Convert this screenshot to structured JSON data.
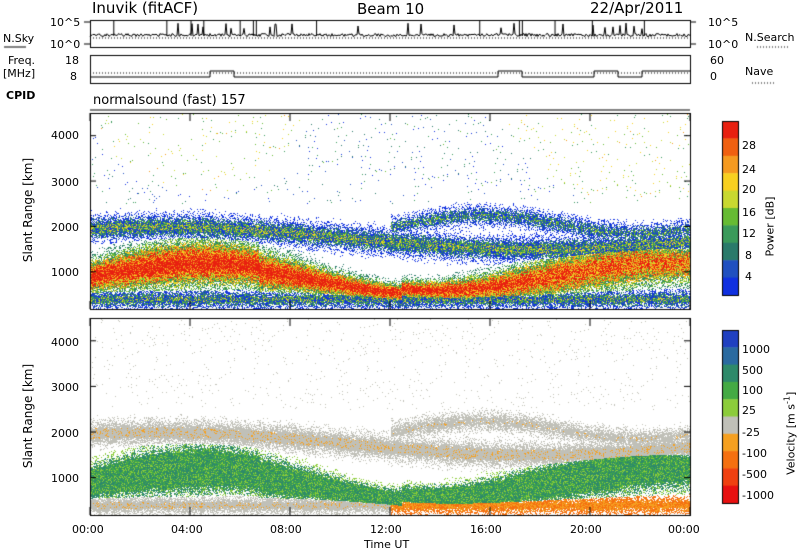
{
  "header": {
    "station": "Inuvik (fitACF)",
    "beam": "Beam 10",
    "date": "22/Apr/2011"
  },
  "left_labels": {
    "nsky": "N.Sky",
    "freq_line1": "Freq.",
    "freq_line2": "[MHz]",
    "cpid": "CPID"
  },
  "right_labels": {
    "nsearch": "N.Search",
    "nave": "Nave"
  },
  "cpid_text": "normalsound (fast) 157",
  "chart_data": [
    {
      "type": "line",
      "panel": "noise",
      "series": [
        {
          "name": "N.Sky",
          "values_description": "",
          "typical": 200
        },
        {
          "name": "N.Search",
          "typical": 150
        }
      ],
      "ylim": [
        1,
        100000
      ],
      "left_ticks": [
        "10^5",
        "10^0"
      ],
      "right_ticks": [
        "10^5",
        "10^0"
      ],
      "scale": "log"
    },
    {
      "type": "line",
      "panel": "frequency",
      "series": [
        {
          "name": "Freq.",
          "values": [
            11.4,
            11.4,
            11.4,
            11.4,
            11.4,
            12.0,
            11.4,
            11.4,
            11.4,
            11.4,
            11.4,
            11.4,
            11.4,
            11.4,
            11.4,
            11.4,
            11.4,
            12.0,
            11.4,
            11.4,
            11.4,
            12.0,
            11.4,
            12.0,
            12.0
          ]
        },
        {
          "name": "Nave",
          "values": [
            20,
            20,
            20,
            20,
            20,
            20,
            20,
            20,
            20,
            20,
            20,
            20,
            20,
            20,
            20,
            20,
            20,
            20,
            20,
            20,
            20,
            20,
            20,
            20,
            20
          ]
        }
      ],
      "left_ticks": [
        "18",
        "8"
      ],
      "right_ticks": [
        "60",
        "0"
      ]
    },
    {
      "type": "heatmap",
      "panel": "power",
      "ylabel": "Slant Range [km]",
      "y_ticks": [
        "4000",
        "3000",
        "2000",
        "1000"
      ],
      "ylim": [
        180,
        4500
      ],
      "colorbar_label": "Power [dB]",
      "colorbar_ticks": [
        "28",
        "24",
        "20",
        "16",
        "12",
        "8",
        "4"
      ],
      "colors": [
        "#1030e0",
        "#2050c0",
        "#2a7a6a",
        "#3a9a5a",
        "#66bb33",
        "#c8d830",
        "#f8d020",
        "#f59a20",
        "#f06010",
        "#e82010"
      ]
    },
    {
      "type": "heatmap",
      "panel": "velocity",
      "ylabel": "Slant Range [km]",
      "y_ticks": [
        "4000",
        "3000",
        "2000",
        "1000"
      ],
      "ylim": [
        180,
        4500
      ],
      "colorbar_label": "Velocity [m s^-1]",
      "colorbar_ticks": [
        "1000",
        "500",
        "100",
        "25",
        "-25",
        "-100",
        "-500",
        "-1000"
      ],
      "colors": [
        "#2040c0",
        "#2a6aa0",
        "#2e8a6a",
        "#44aa44",
        "#8ccc3a",
        "#c0c0b8",
        "#f5a020",
        "#f57010",
        "#f04010",
        "#e81010"
      ],
      "xlabel": "Time UT",
      "x_ticks": [
        "00:00",
        "04:00",
        "08:00",
        "12:00",
        "16:00",
        "20:00",
        "00:00"
      ]
    }
  ],
  "colors": {
    "frame": "#000000",
    "background": "#ffffff"
  }
}
